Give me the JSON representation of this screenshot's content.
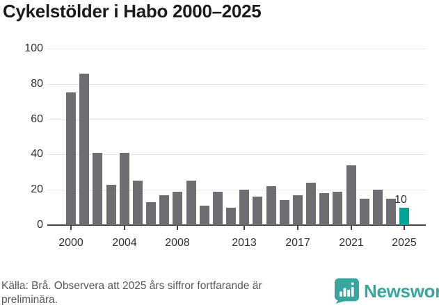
{
  "title": "Cykelstölder i Habo 2000–2025",
  "chart_data": {
    "type": "bar",
    "categories": [
      "2000",
      "2001",
      "2002",
      "2003",
      "2004",
      "2005",
      "2006",
      "2007",
      "2008",
      "2009",
      "2010",
      "2011",
      "2012",
      "2013",
      "2014",
      "2015",
      "2016",
      "2017",
      "2018",
      "2019",
      "2020",
      "2021",
      "2022",
      "2023",
      "2024",
      "2025"
    ],
    "values": [
      75,
      86,
      41,
      23,
      41,
      25,
      13,
      17,
      19,
      25,
      11,
      19,
      10,
      20,
      16,
      22,
      14,
      17,
      24,
      18,
      19,
      34,
      15,
      20,
      15,
      10
    ],
    "title": "Cykelstölder i Habo 2000–2025",
    "xlabel": "",
    "ylabel": "",
    "ylim": [
      0,
      100
    ],
    "yticks": [
      0,
      20,
      40,
      60,
      80,
      100
    ],
    "xtick_labels": [
      "2000",
      "2004",
      "2008",
      "2013",
      "2017",
      "2021",
      "2025"
    ],
    "grid": true,
    "legend_position": "none",
    "bar_color": "#6d6d72",
    "highlight": {
      "category": "2025",
      "color": "#00a396",
      "data_label": "10"
    }
  },
  "footer": {
    "source": "Källa: Brå. Observera att 2025 års siffror fortfarande är preliminära.",
    "brand": {
      "name": "Newsworthy",
      "color": "#37a69f",
      "icon": "newsworthy-speech-bubble-barchart-icon"
    }
  }
}
